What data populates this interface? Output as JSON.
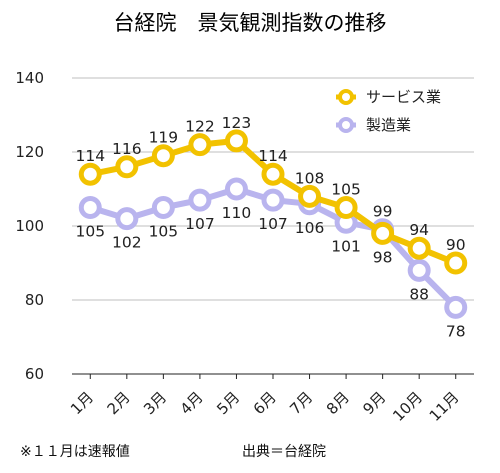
{
  "colors": {
    "series1": "#f2c200",
    "series2": "#b9b4ee",
    "grid": "#bfbfbf",
    "axis": "#222222"
  },
  "chart_data": {
    "type": "line",
    "title": "台経院　景気観測指数の推移",
    "xlabel": "",
    "ylabel": "",
    "categories": [
      "1月",
      "2月",
      "3月",
      "4月",
      "5月",
      "6月",
      "7月",
      "8月",
      "9月",
      "10月",
      "11月"
    ],
    "ylim": [
      60,
      140
    ],
    "yticks": [
      60,
      80,
      100,
      120,
      140
    ],
    "grid": true,
    "legend_position": "top-right",
    "series": [
      {
        "name": "サービス業",
        "values": [
          114,
          116,
          119,
          122,
          123,
          114,
          108,
          105,
          98,
          94,
          90
        ]
      },
      {
        "name": "製造業",
        "values": [
          105,
          102,
          105,
          107,
          110,
          107,
          106,
          101,
          99,
          88,
          78
        ]
      }
    ]
  },
  "footnote": "※１１月は速報値",
  "source": "出典＝台経院"
}
